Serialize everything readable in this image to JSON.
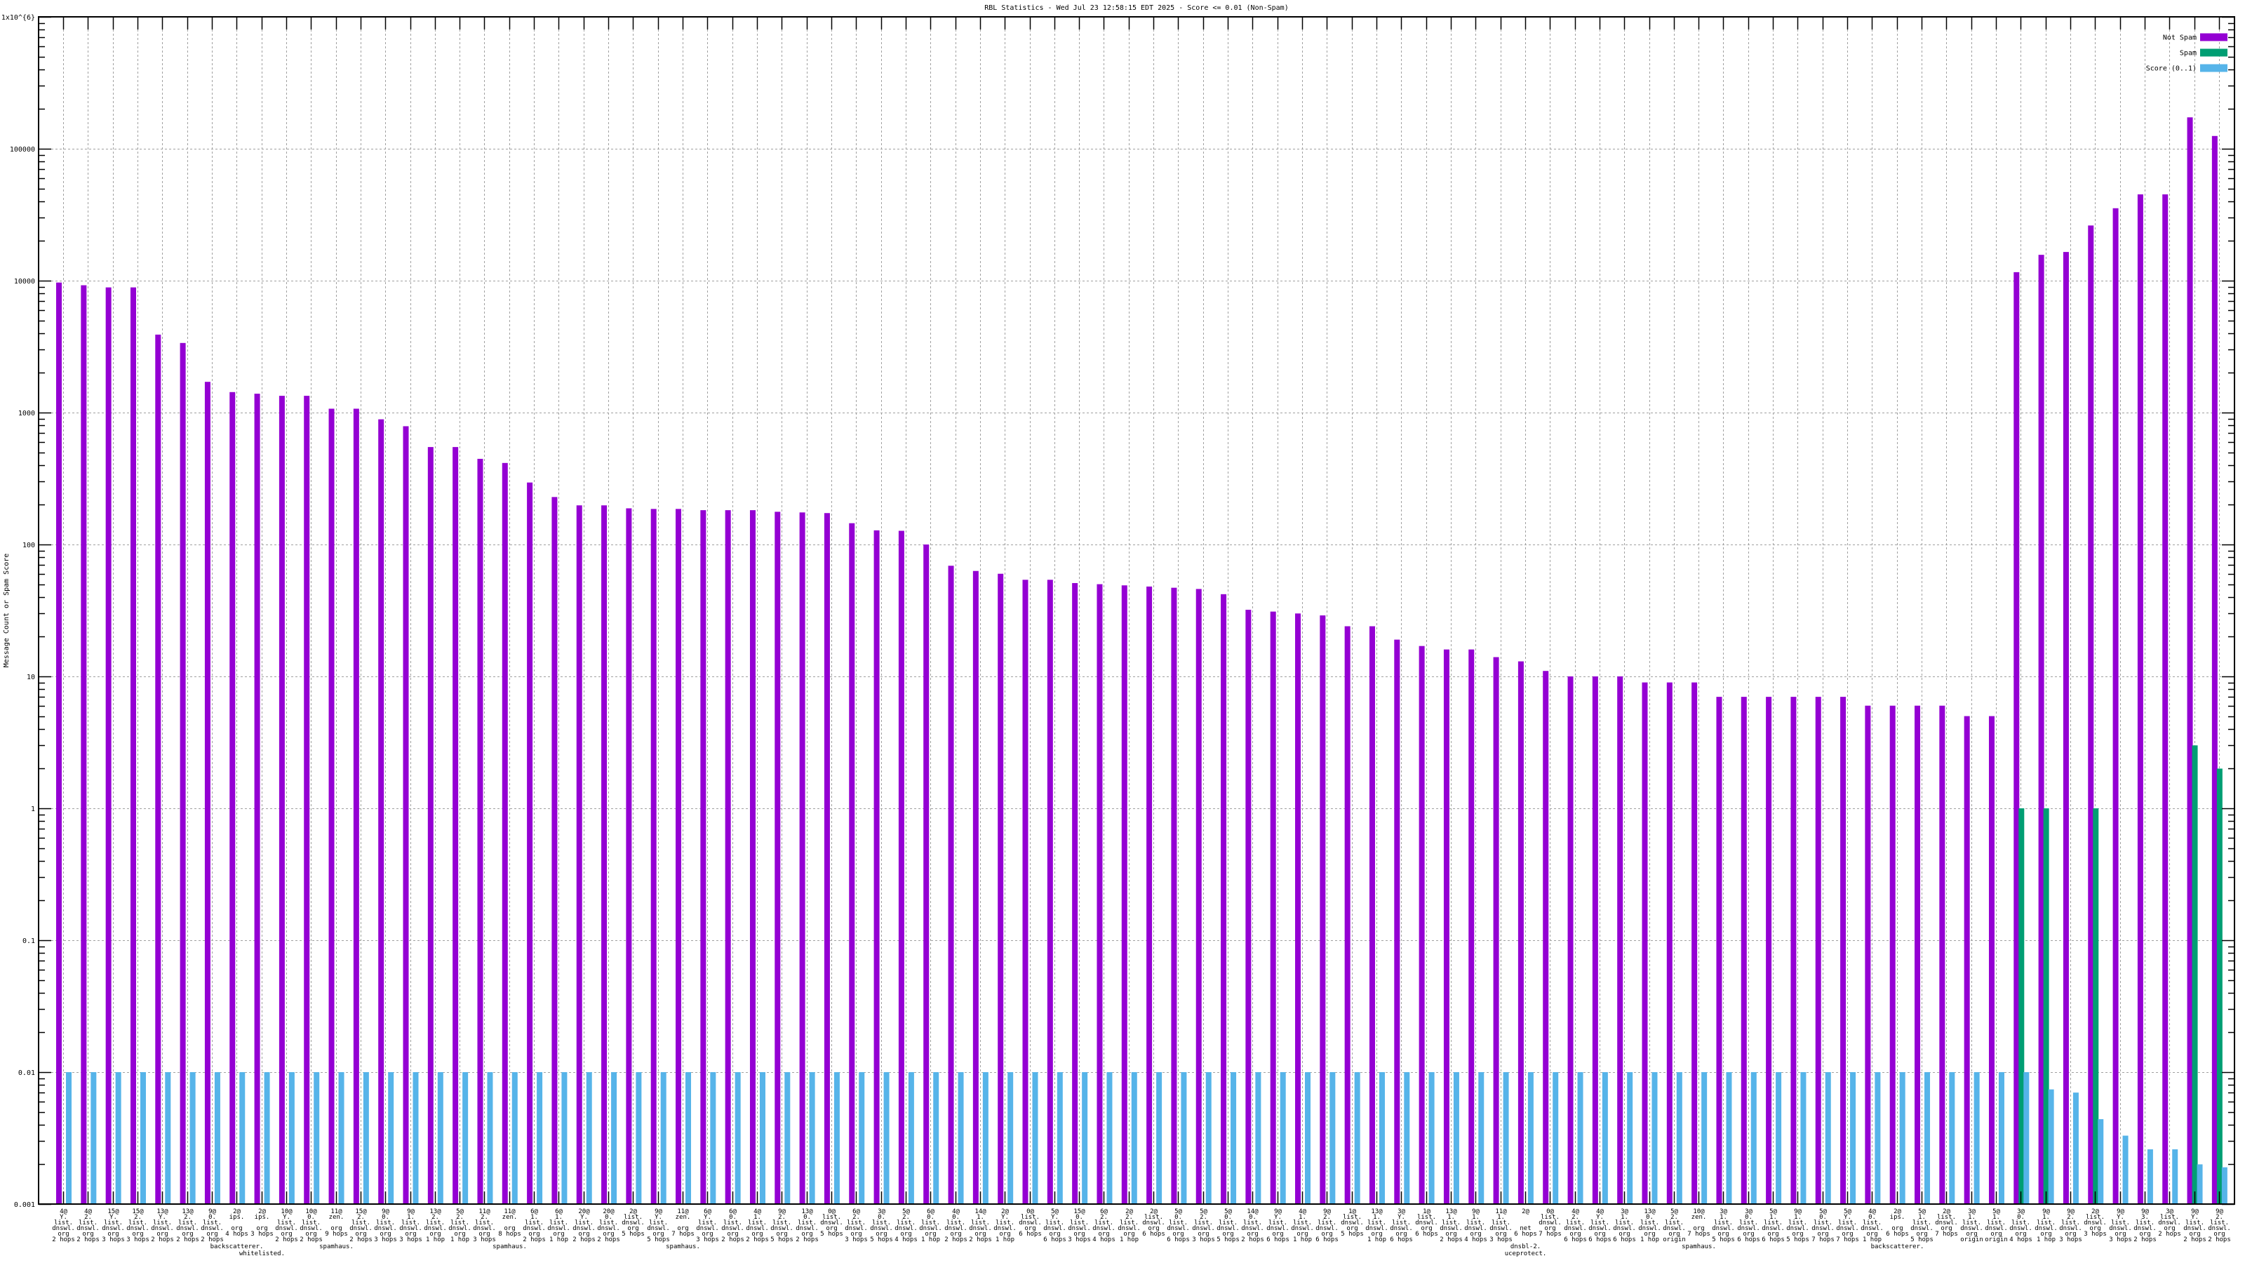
{
  "chart_data": {
    "type": "bar",
    "title": "RBL Statistics - Wed Jul 23 12:58:15 EDT 2025 - Score <= 0.01 (Non-Spam)",
    "xlabel": "",
    "ylabel": "Message Count or Spam Score",
    "yscale": "log",
    "ylim": [
      0.001,
      1000000
    ],
    "ytick_labels": [
      "1x10^{6}",
      "100000",
      "10000",
      "1000",
      "100",
      "10",
      "1",
      "0.1",
      "0.01",
      "0.001"
    ],
    "grid": true,
    "legend_position": "top-right",
    "colors": {
      "Not Spam": "#9400d3",
      "Spam": "#009e73",
      "Score (0..1)": "#56b4e9"
    },
    "categories": [
      "4@\nY.\nlist.\ndnswl.\norg\n2 hops",
      "4@\n2.\nlist.\ndnswl.\norg\n2 hops",
      "15@\nY.\nlist.\ndnswl.\norg\n3 hops",
      "15@\n2.\nlist.\ndnswl.\norg\n3 hops",
      "13@\nY.\nlist.\ndnswl.\norg\n2 hops",
      "13@\n2.\nlist.\ndnswl.\norg\n2 hops",
      "9@\n0.\nlist.\ndnswl.\norg\n2 hops",
      "2@\nips.\nbackscatterer.\norg\n4 hops",
      "2@\nips.\nwhitelisted.\norg\n3 hops",
      "10@\nY.\nlist.\ndnswl.\norg\n2 hops",
      "10@\n0.\nlist.\ndnswl.\norg\n2 hops",
      "11@\nzen.\nspamhaus.\norg\n9 hops",
      "15@\n2.\nlist.\ndnswl.\norg\n2 hops",
      "9@\n0.\nlist.\ndnswl.\norg\n3 hops",
      "9@\n1.\nlist.\ndnswl.\norg\n3 hops",
      "13@\n2.\nlist.\ndnswl.\norg\n1 hop",
      "5@\n2.\nlist.\ndnswl.\norg\n1 hop",
      "11@\n2.\nlist.\ndnswl.\norg\n3 hops",
      "11@\nzen.\nspamhaus.\norg\n8 hops",
      "6@\n1.\nlist.\ndnswl.\norg\n2 hops",
      "6@\n1.\nlist.\ndnswl.\norg\n1 hop",
      "20@\nY.\nlist.\ndnswl.\norg\n2 hops",
      "20@\n0.\nlist.\ndnswl.\norg\n2 hops",
      "2@\nlist.\ndnswl.\norg\n5 hops",
      "9@\nY.\nlist.\ndnswl.\norg\n5 hops",
      "11@\nzen.\nspamhaus.\norg\n7 hops",
      "6@\nY.\nlist.\ndnswl.\norg\n3 hops",
      "6@\n0.\nlist.\ndnswl.\norg\n2 hops",
      "4@\n1.\nlist.\ndnswl.\norg\n2 hops",
      "9@\n2.\nlist.\ndnswl.\norg\n5 hops",
      "13@\n0.\nlist.\ndnswl.\norg\n2 hops",
      "0@\nlist.\ndnswl.\norg\n5 hops",
      "6@\n2.\nlist.\ndnswl.\norg\n3 hops",
      "3@\n0.\nlist.\ndnswl.\norg\n5 hops",
      "5@\n2.\nlist.\ndnswl.\norg\n4 hops",
      "6@\n0.\nlist.\ndnswl.\norg\n1 hop",
      "4@\n0.\nlist.\ndnswl.\norg\n2 hops",
      "14@\n1.\nlist.\ndnswl.\norg\n2 hops",
      "2@\nY.\nlist.\ndnswl.\norg\n1 hop",
      "0@\nlist.\ndnswl.\norg\n6 hops",
      "5@\nY.\nlist.\ndnswl.\norg\n6 hops",
      "15@\n0.\nlist.\ndnswl.\norg\n3 hops",
      "6@\n2.\nlist.\ndnswl.\norg\n4 hops",
      "2@\n2.\nlist.\ndnswl.\norg\n1 hop",
      "2@\nlist.\ndnswl.\norg\n6 hops",
      "5@\n0.\nlist.\ndnswl.\norg\n6 hops",
      "5@\n2.\nlist.\ndnswl.\norg\n3 hops",
      "5@\n0.\nlist.\ndnswl.\norg\n5 hops",
      "14@\n0.\nlist.\ndnswl.\norg\n2 hops",
      "9@\nY.\nlist.\ndnswl.\norg\n6 hops",
      "4@\n1.\nlist.\ndnswl.\norg\n1 hop",
      "9@\n2.\nlist.\ndnswl.\norg\n6 hops",
      "1@\nlist.\ndnswl.\norg\n5 hops",
      "13@\n1.\nlist.\ndnswl.\norg\n1 hop",
      "3@\nY.\nlist.\ndnswl.\norg\n6 hops",
      "1@\nlist.\ndnswl.\norg\n6 hops",
      "13@\n1.\nlist.\ndnswl.\norg\n2 hops",
      "9@\n1.\nlist.\ndnswl.\norg\n4 hops",
      "11@\n1.\nlist.\ndnswl.\norg\n3 hops",
      "2@\ndnsbl-2.\nuceprotect.\nnet\n6 hops",
      "0@\nlist.\ndnswl.\norg\n7 hops",
      "4@\n2.\nlist.\ndnswl.\norg\n6 hops",
      "4@\nY.\nlist.\ndnswl.\norg\n6 hops",
      "3@\n1.\nlist.\ndnswl.\norg\n6 hops",
      "13@\n0.\nlist.\ndnswl.\norg\n1 hop",
      "5@\n2.\nlist.\ndnswl.\norg\norigin",
      "10@\nzen.\nspamhaus.\norg\n7 hops",
      "3@\n1.\nlist.\ndnswl.\norg\n5 hops",
      "3@\n0.\nlist.\ndnswl.\norg\n6 hops",
      "5@\n1.\nlist.\ndnswl.\norg\n6 hops",
      "9@\n1.\nlist.\ndnswl.\norg\n5 hops",
      "5@\n0.\nlist.\ndnswl.\norg\n7 hops",
      "5@\nY.\nlist.\ndnswl.\norg\n7 hops",
      "4@\n0.\nlist.\ndnswl.\norg\n1 hop",
      "2@\nips.\nbackscatterer.\norg\n6 hops",
      "5@\n1.\nlist.\ndnswl.\norg\n5 hops",
      "2@\nlist.\ndnswl.\norg\n7 hops",
      "3@\n1.\nlist.\ndnswl.\norg\norigin",
      "5@\n1.\nlist.\ndnswl.\norg\norigin",
      "3@\n0.\nlist.\ndnswl.\norg\n4 hops",
      "9@\n1.\nlist.\ndnswl.\norg\n1 hop",
      "9@\n2.\nlist.\ndnswl.\norg\n3 hops",
      "2@\nlist.\ndnswl.\norg\n3 hops",
      "9@\nY.\nlist.\ndnswl.\norg\n3 hops",
      "9@\n3.\nlist.\ndnswl.\norg\n2 hops",
      "3@\nlist.\ndnswl.\norg\n2 hops",
      "9@\nY.\nlist.\ndnswl.\norg\n2 hops",
      "9@\n2.\nlist.\ndnswl.\norg\n2 hops"
    ],
    "series": [
      {
        "name": "Not Spam",
        "values": [
          9680,
          9230,
          8890,
          8890,
          3900,
          3370,
          1710,
          1430,
          1390,
          1340,
          1340,
          1070,
          1070,
          889,
          788,
          548,
          548,
          446,
          415,
          295,
          229,
          198,
          198,
          188,
          186,
          186,
          182,
          182,
          182,
          177,
          175,
          173,
          145,
          128,
          127,
          100,
          69,
          63,
          60,
          54,
          54,
          51,
          50,
          49,
          48,
          47,
          46,
          42,
          32,
          31,
          30,
          29,
          24,
          24,
          19,
          17,
          16,
          16,
          14,
          13,
          11,
          10,
          10,
          10,
          9,
          9,
          9,
          7,
          7,
          7,
          7,
          7,
          7,
          6,
          6,
          6,
          6,
          5,
          5,
          11600,
          15700,
          16500,
          26200,
          35400,
          45100,
          45100,
          173000,
          125000
        ]
      },
      {
        "name": "Spam",
        "values": [
          null,
          null,
          null,
          null,
          null,
          null,
          null,
          null,
          null,
          null,
          null,
          null,
          null,
          null,
          null,
          null,
          null,
          null,
          null,
          null,
          null,
          null,
          null,
          null,
          null,
          null,
          null,
          null,
          null,
          null,
          null,
          null,
          null,
          null,
          null,
          null,
          null,
          null,
          null,
          null,
          null,
          null,
          null,
          null,
          null,
          null,
          null,
          null,
          null,
          null,
          null,
          null,
          null,
          null,
          null,
          null,
          null,
          null,
          null,
          null,
          null,
          null,
          null,
          null,
          null,
          null,
          null,
          null,
          null,
          null,
          null,
          null,
          null,
          null,
          null,
          null,
          null,
          null,
          null,
          1,
          1,
          null,
          1,
          null,
          null,
          null,
          3,
          2
        ]
      },
      {
        "name": "Score (0..1)",
        "values": [
          0.01,
          0.01,
          0.01,
          0.01,
          0.01,
          0.01,
          0.01,
          0.01,
          0.01,
          0.01,
          0.01,
          0.01,
          0.01,
          0.01,
          0.01,
          0.01,
          0.01,
          0.01,
          0.01,
          0.01,
          0.01,
          0.01,
          0.01,
          0.01,
          0.01,
          0.01,
          0.01,
          0.01,
          0.01,
          0.01,
          0.01,
          0.01,
          0.01,
          0.01,
          0.01,
          0.01,
          0.01,
          0.01,
          0.01,
          0.01,
          0.01,
          0.01,
          0.01,
          0.01,
          0.01,
          0.01,
          0.01,
          0.01,
          0.01,
          0.01,
          0.01,
          0.01,
          0.01,
          0.01,
          0.01,
          0.01,
          0.01,
          0.01,
          0.01,
          0.01,
          0.01,
          0.01,
          0.01,
          0.01,
          0.01,
          0.01,
          0.01,
          0.01,
          0.01,
          0.01,
          0.01,
          0.01,
          0.01,
          0.01,
          0.01,
          0.01,
          0.01,
          0.01,
          0.01,
          0.01,
          0.0074,
          0.007,
          0.0044,
          0.0033,
          0.0026,
          0.0026,
          0.002,
          0.0019
        ]
      }
    ]
  }
}
